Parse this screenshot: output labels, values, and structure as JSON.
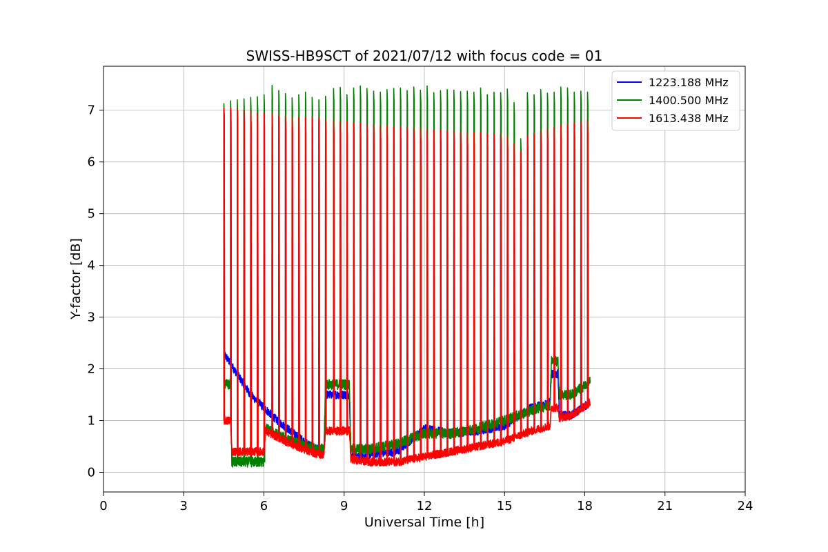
{
  "chart_data": {
    "type": "line",
    "title": "SWISS-HB9SCT of 2021/07/12 with focus code = 01",
    "xlabel": "Universal Time [h]",
    "ylabel": "Y-factor [dB]",
    "xlim": [
      0,
      24
    ],
    "ylim": [
      -0.38,
      7.85
    ],
    "xticks": [
      0,
      3,
      6,
      9,
      12,
      15,
      18,
      21,
      24
    ],
    "yticks": [
      0,
      1,
      2,
      3,
      4,
      5,
      6,
      7
    ],
    "grid": true,
    "legend_position": "top-right",
    "series": [
      {
        "name": "1223.188 MHz",
        "color": "#0000ff",
        "noise": 0.08,
        "baseline": [
          [
            4.5,
            2.3
          ],
          [
            5.0,
            1.9
          ],
          [
            5.5,
            1.5
          ],
          [
            6.0,
            1.25
          ],
          [
            6.5,
            1.0
          ],
          [
            7.0,
            0.8
          ],
          [
            7.5,
            0.6
          ],
          [
            8.0,
            0.45
          ],
          [
            8.25,
            0.4
          ],
          [
            8.3,
            1.5
          ],
          [
            9.2,
            1.5
          ],
          [
            9.25,
            0.3
          ],
          [
            9.6,
            0.3
          ],
          [
            10.0,
            0.35
          ],
          [
            11.0,
            0.4
          ],
          [
            12.0,
            0.85
          ],
          [
            13.0,
            0.75
          ],
          [
            14.0,
            0.8
          ],
          [
            15.0,
            0.9
          ],
          [
            16.0,
            1.25
          ],
          [
            16.7,
            1.35
          ],
          [
            16.75,
            1.9
          ],
          [
            17.0,
            1.9
          ],
          [
            17.05,
            1.1
          ],
          [
            17.5,
            1.1
          ],
          [
            18.2,
            1.35
          ]
        ]
      },
      {
        "name": "1400.500 MHz",
        "color": "#008000",
        "noise": 0.1,
        "baseline": [
          [
            4.5,
            1.7
          ],
          [
            4.75,
            1.7
          ],
          [
            4.8,
            0.2
          ],
          [
            6.0,
            0.2
          ],
          [
            6.05,
            0.85
          ],
          [
            7.0,
            0.6
          ],
          [
            8.0,
            0.45
          ],
          [
            8.25,
            0.45
          ],
          [
            8.3,
            1.7
          ],
          [
            9.2,
            1.7
          ],
          [
            9.25,
            0.45
          ],
          [
            10.0,
            0.45
          ],
          [
            11.0,
            0.55
          ],
          [
            12.0,
            0.75
          ],
          [
            13.0,
            0.75
          ],
          [
            14.0,
            0.85
          ],
          [
            15.0,
            1.0
          ],
          [
            16.0,
            1.2
          ],
          [
            16.7,
            1.3
          ],
          [
            16.75,
            2.15
          ],
          [
            17.0,
            2.15
          ],
          [
            17.05,
            1.5
          ],
          [
            17.5,
            1.5
          ],
          [
            18.2,
            1.75
          ]
        ]
      },
      {
        "name": "1613.438 MHz",
        "color": "#ff0000",
        "noise": 0.08,
        "baseline": [
          [
            4.5,
            1.0
          ],
          [
            4.75,
            1.0
          ],
          [
            4.8,
            0.4
          ],
          [
            6.0,
            0.4
          ],
          [
            6.05,
            0.8
          ],
          [
            7.0,
            0.55
          ],
          [
            8.0,
            0.35
          ],
          [
            8.25,
            0.35
          ],
          [
            8.3,
            0.8
          ],
          [
            9.2,
            0.8
          ],
          [
            9.25,
            0.25
          ],
          [
            10.0,
            0.2
          ],
          [
            11.0,
            0.2
          ],
          [
            12.0,
            0.3
          ],
          [
            13.0,
            0.4
          ],
          [
            14.0,
            0.5
          ],
          [
            15.0,
            0.6
          ],
          [
            16.0,
            0.8
          ],
          [
            16.7,
            0.9
          ],
          [
            16.75,
            1.25
          ],
          [
            17.0,
            1.25
          ],
          [
            17.05,
            1.05
          ],
          [
            17.5,
            1.1
          ],
          [
            18.2,
            1.35
          ]
        ]
      }
    ],
    "peaks": {
      "times": [
        4.5,
        4.75,
        5.0,
        5.25,
        5.5,
        5.75,
        6.0,
        6.3,
        6.55,
        6.8,
        7.05,
        7.3,
        7.55,
        7.8,
        8.05,
        8.3,
        8.6,
        8.85,
        9.1,
        9.35,
        9.6,
        9.85,
        10.1,
        10.35,
        10.6,
        10.85,
        11.1,
        11.35,
        11.6,
        11.85,
        12.1,
        12.35,
        12.6,
        12.85,
        13.1,
        13.35,
        13.6,
        13.85,
        14.1,
        14.35,
        14.6,
        14.85,
        15.1,
        15.35,
        15.6,
        15.85,
        16.1,
        16.35,
        16.6,
        16.85,
        17.1,
        17.35,
        17.6,
        17.85,
        18.1
      ],
      "green": [
        7.13,
        7.18,
        7.2,
        7.22,
        7.25,
        7.26,
        7.3,
        7.48,
        7.38,
        7.32,
        7.24,
        7.3,
        7.35,
        7.25,
        7.2,
        7.27,
        7.42,
        7.44,
        7.3,
        7.43,
        7.47,
        7.42,
        7.37,
        7.35,
        7.4,
        7.42,
        7.43,
        7.38,
        7.45,
        7.39,
        7.47,
        7.34,
        7.38,
        7.4,
        7.39,
        7.36,
        7.37,
        7.35,
        7.43,
        7.3,
        7.35,
        7.34,
        7.41,
        7.15,
        6.45,
        7.34,
        7.3,
        7.4,
        7.33,
        7.35,
        7.45,
        7.43,
        7.35,
        7.37,
        7.35
      ],
      "red": [
        7.05,
        7.05,
        7.03,
        7.0,
        6.98,
        6.95,
        6.95,
        6.92,
        6.9,
        6.88,
        6.87,
        6.87,
        6.86,
        6.85,
        6.85,
        6.82,
        6.8,
        6.78,
        6.78,
        6.76,
        6.75,
        6.73,
        6.72,
        6.7,
        6.7,
        6.68,
        6.67,
        6.66,
        6.65,
        6.64,
        6.63,
        6.62,
        6.62,
        6.6,
        6.6,
        6.58,
        6.57,
        6.56,
        6.56,
        6.55,
        6.55,
        6.54,
        6.5,
        6.35,
        6.2,
        6.5,
        6.55,
        6.6,
        6.65,
        6.68,
        6.7,
        6.72,
        6.75,
        6.78,
        6.8
      ],
      "blue": [
        7.03,
        7.03,
        7.02,
        7.0,
        6.97,
        6.95,
        6.94,
        6.91,
        6.89,
        6.87,
        6.86,
        6.86,
        6.85,
        6.84,
        6.84,
        6.81,
        6.79,
        6.77,
        6.77,
        6.75,
        6.74,
        6.72,
        6.71,
        6.69,
        6.69,
        6.67,
        6.66,
        6.65,
        6.64,
        6.63,
        6.62,
        6.61,
        6.61,
        6.59,
        6.59,
        6.57,
        6.56,
        6.55,
        6.55,
        6.54,
        6.54,
        6.53,
        6.49,
        6.34,
        6.19,
        6.49,
        6.54,
        6.59,
        6.64,
        6.67,
        6.69,
        6.71,
        6.74,
        6.77,
        6.79
      ]
    }
  }
}
